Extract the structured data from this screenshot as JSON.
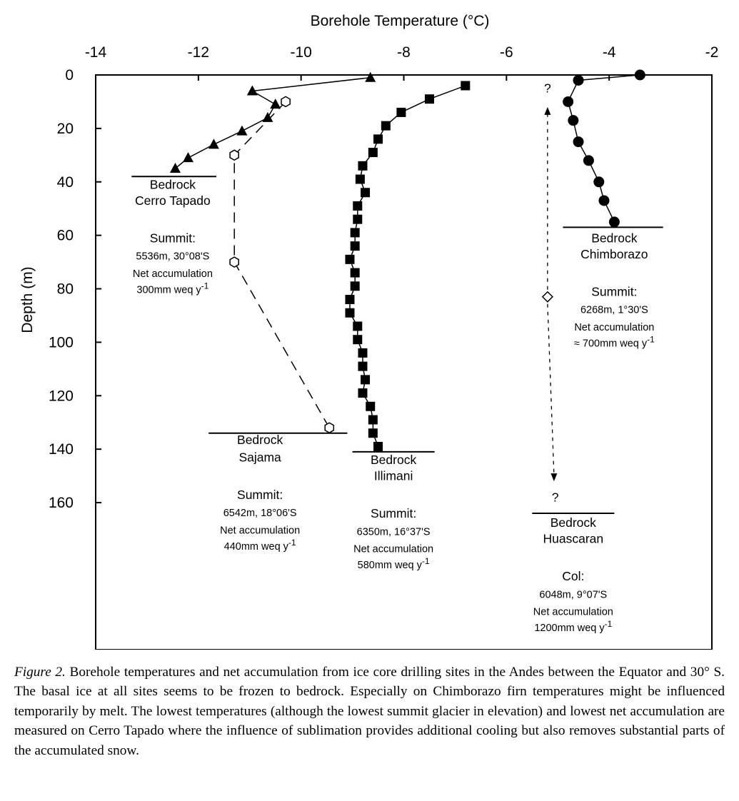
{
  "chart_data": {
    "type": "scatter",
    "title": "Borehole Temperature (°C)",
    "xlabel": "Borehole Temperature (°C)",
    "ylabel": "Depth (m)",
    "xlim": [
      -14,
      -2
    ],
    "ylim": [
      0,
      215
    ],
    "y_inverted": true,
    "x_axis_position": "top",
    "xticks": [
      -14,
      -12,
      -10,
      -8,
      -6,
      -4,
      -2
    ],
    "xtick_labels": [
      "-14",
      "-12",
      "-10",
      "-8",
      "-6",
      "-4",
      "-2"
    ],
    "yticks": [
      0,
      20,
      40,
      60,
      80,
      100,
      120,
      140,
      160
    ],
    "ytick_labels": [
      "0",
      "20",
      "40",
      "60",
      "80",
      "100",
      "120",
      "140",
      "160"
    ],
    "grid": false,
    "legend": "none",
    "series": [
      {
        "site": "Cerro Tapado",
        "marker": "triangle",
        "line": "solid",
        "points": [
          [
            -8.65,
            1
          ],
          [
            -10.95,
            6
          ],
          [
            -10.5,
            11
          ],
          [
            -10.65,
            16
          ],
          [
            -11.15,
            21
          ],
          [
            -11.7,
            26
          ],
          [
            -12.2,
            31
          ],
          [
            -12.45,
            35
          ]
        ],
        "bedrock_depth": 38,
        "bedrock_x": [
          -13.3,
          -11.65
        ]
      },
      {
        "site": "Sajama",
        "marker": "hexagon-open",
        "line": "dashed",
        "points": [
          [
            -10.3,
            10
          ],
          [
            -11.3,
            30
          ],
          [
            -11.3,
            70
          ],
          [
            -9.45,
            132
          ]
        ],
        "bedrock_depth": 134,
        "bedrock_x": [
          -11.8,
          -9.1
        ]
      },
      {
        "site": "Illimani",
        "marker": "square",
        "line": "solid",
        "points": [
          [
            -6.8,
            4
          ],
          [
            -7.5,
            9
          ],
          [
            -8.05,
            14
          ],
          [
            -8.35,
            19
          ],
          [
            -8.5,
            24
          ],
          [
            -8.6,
            29
          ],
          [
            -8.8,
            34
          ],
          [
            -8.85,
            39
          ],
          [
            -8.75,
            44
          ],
          [
            -8.9,
            49
          ],
          [
            -8.9,
            54
          ],
          [
            -8.95,
            59
          ],
          [
            -8.95,
            64
          ],
          [
            -9.05,
            69
          ],
          [
            -8.95,
            74
          ],
          [
            -8.95,
            79
          ],
          [
            -9.05,
            84
          ],
          [
            -9.05,
            89
          ],
          [
            -8.9,
            94
          ],
          [
            -8.9,
            99
          ],
          [
            -8.8,
            104
          ],
          [
            -8.8,
            109
          ],
          [
            -8.75,
            114
          ],
          [
            -8.8,
            119
          ],
          [
            -8.65,
            124
          ],
          [
            -8.6,
            129
          ],
          [
            -8.6,
            134
          ],
          [
            -8.5,
            139
          ]
        ],
        "bedrock_depth": 141,
        "bedrock_x": [
          -9.0,
          -7.4
        ]
      },
      {
        "site": "Chimborazo",
        "marker": "circle",
        "line": "solid",
        "points": [
          [
            -3.4,
            0
          ],
          [
            -4.6,
            2
          ],
          [
            -4.8,
            10
          ],
          [
            -4.7,
            17
          ],
          [
            -4.6,
            25
          ],
          [
            -4.4,
            32
          ],
          [
            -4.2,
            40
          ],
          [
            -4.1,
            47
          ],
          [
            -3.9,
            55
          ]
        ],
        "bedrock_depth": 57,
        "bedrock_x": [
          -4.9,
          -2.95
        ]
      },
      {
        "site": "Huascaran",
        "marker": "diamond-open",
        "line": "dotted-arrows",
        "points": [
          [
            -5.2,
            83
          ]
        ],
        "arrows_to_depths": [
          12,
          152
        ],
        "unknown_labels": [
          [
            -5.2,
            5
          ],
          [
            -5.05,
            158
          ]
        ],
        "bedrock_depth": 164,
        "bedrock_x": [
          -5.5,
          -3.9
        ]
      }
    ],
    "annotations": [
      {
        "anchor": [
          -12.5,
          41
        ],
        "size": "big",
        "text": "Bedrock"
      },
      {
        "anchor": [
          -12.5,
          47
        ],
        "size": "big",
        "text": "Cerro Tapado"
      },
      {
        "anchor": [
          -12.5,
          61
        ],
        "size": "big",
        "text": "Summit:"
      },
      {
        "anchor": [
          -12.5,
          67.5
        ],
        "size": "small",
        "text": "5536m, 30°08'S"
      },
      {
        "anchor": [
          -12.5,
          74
        ],
        "size": "small",
        "text": "Net accumulation"
      },
      {
        "anchor": [
          -12.5,
          80
        ],
        "size": "small",
        "text": "300mm weq y",
        "sup": "-1"
      },
      {
        "anchor": [
          -10.8,
          136.5
        ],
        "size": "big",
        "text": "Bedrock"
      },
      {
        "anchor": [
          -10.8,
          143
        ],
        "size": "big",
        "text": "Sajama"
      },
      {
        "anchor": [
          -10.8,
          157
        ],
        "size": "big",
        "text": "Summit:"
      },
      {
        "anchor": [
          -10.8,
          163.5
        ],
        "size": "small",
        "text": "6542m, 18°06'S"
      },
      {
        "anchor": [
          -10.8,
          170
        ],
        "size": "small",
        "text": "Net accumulation"
      },
      {
        "anchor": [
          -10.8,
          176
        ],
        "size": "small",
        "text": "440mm weq y",
        "sup": "-1"
      },
      {
        "anchor": [
          -8.2,
          144
        ],
        "size": "big",
        "text": "Bedrock"
      },
      {
        "anchor": [
          -8.2,
          150
        ],
        "size": "big",
        "text": "Illimani"
      },
      {
        "anchor": [
          -8.2,
          164
        ],
        "size": "big",
        "text": "Summit:"
      },
      {
        "anchor": [
          -8.2,
          170.5
        ],
        "size": "small",
        "text": "6350m, 16°37'S"
      },
      {
        "anchor": [
          -8.2,
          177
        ],
        "size": "small",
        "text": "Net accumulation"
      },
      {
        "anchor": [
          -8.2,
          183
        ],
        "size": "small",
        "text": "580mm weq y",
        "sup": "-1"
      },
      {
        "anchor": [
          -3.9,
          61
        ],
        "size": "big",
        "text": "Bedrock"
      },
      {
        "anchor": [
          -3.9,
          67
        ],
        "size": "big",
        "text": "Chimborazo"
      },
      {
        "anchor": [
          -3.9,
          81
        ],
        "size": "big",
        "text": "Summit:"
      },
      {
        "anchor": [
          -3.9,
          87.5
        ],
        "size": "small",
        "text": "6268m, 1°30'S"
      },
      {
        "anchor": [
          -3.9,
          94
        ],
        "size": "small",
        "text": "Net accumulation"
      },
      {
        "anchor": [
          -3.9,
          100
        ],
        "size": "small",
        "text": "≈ 700mm weq y",
        "sup": "-1"
      },
      {
        "anchor": [
          -4.7,
          167.5
        ],
        "size": "big",
        "text": "Bedrock"
      },
      {
        "anchor": [
          -4.7,
          173.5
        ],
        "size": "big",
        "text": "Huascaran"
      },
      {
        "anchor": [
          -4.7,
          187.5
        ],
        "size": "big",
        "text": "Col:"
      },
      {
        "anchor": [
          -4.7,
          194
        ],
        "size": "small",
        "text": "6048m, 9°07'S"
      },
      {
        "anchor": [
          -4.7,
          200.5
        ],
        "size": "small",
        "text": "Net accumulation"
      },
      {
        "anchor": [
          -4.7,
          206.5
        ],
        "size": "small",
        "text": "1200mm weq y",
        "sup": "-1"
      }
    ]
  },
  "caption": {
    "label": "Figure 2.",
    "text": "Borehole temperatures and net accumulation from ice core drilling sites in the Andes between the Equator and 30° S. The basal ice at all sites seems to be frozen to bedrock. Especially on Chimborazo firn temperatures might be influenced temporarily by melt. The lowest temperatures (although the lowest summit glacier in elevation) and lowest net accumulation are measured on Cerro Tapado where the influence of sublimation provides additional cooling but also removes substantial parts of the accumulated snow."
  }
}
